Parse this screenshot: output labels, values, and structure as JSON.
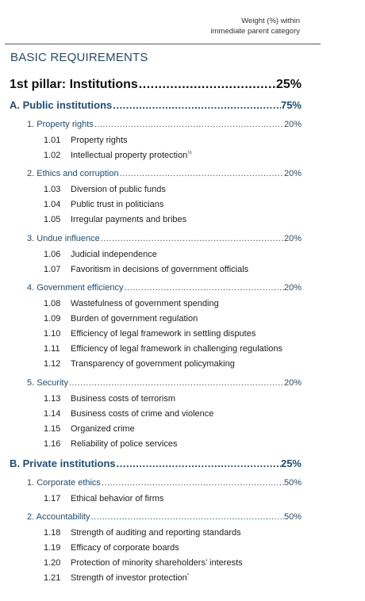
{
  "weight_note": {
    "line1": "Weight (%) within",
    "line2": "immediate parent category"
  },
  "section": {
    "title": "BASIC REQUIREMENTS"
  },
  "pillar": {
    "label": "1st pillar: Institutions",
    "pct": "25%"
  },
  "subsections": [
    {
      "label": "A. Public institutions",
      "pct": "75%"
    },
    {
      "label": "B. Private institutions",
      "pct": "25%"
    }
  ],
  "categories": [
    {
      "label": "1. Property rights",
      "pct": "20%"
    },
    {
      "label": "2. Ethics and corruption",
      "pct": "20%"
    },
    {
      "label": "3. Undue influence",
      "pct": "20%"
    },
    {
      "label": "4. Government efficiency",
      "pct": "20%"
    },
    {
      "label": "5. Security",
      "pct": "20%"
    },
    {
      "label": "1. Corporate ethics",
      "pct": "50%"
    },
    {
      "label": "2. Accountability",
      "pct": "50%"
    }
  ],
  "indicators": [
    {
      "num": "1.01",
      "text": "Property rights"
    },
    {
      "num": "1.02",
      "text": "Intellectual property protection",
      "mark": "½"
    },
    {
      "num": "1.03",
      "text": "Diversion of public funds"
    },
    {
      "num": "1.04",
      "text": "Public trust in politicians"
    },
    {
      "num": "1.05",
      "text": "Irregular payments and bribes"
    },
    {
      "num": "1.06",
      "text": "Judicial independence"
    },
    {
      "num": "1.07",
      "text": "Favoritism in decisions of government officials"
    },
    {
      "num": "1.08",
      "text": "Wastefulness of government spending"
    },
    {
      "num": "1.09",
      "text": "Burden of government regulation"
    },
    {
      "num": "1.10",
      "text": "Efficiency of legal framework in settling disputes"
    },
    {
      "num": "1.11",
      "text": "Efficiency of legal framework in challenging regulations"
    },
    {
      "num": "1.12",
      "text": "Transparency of government policymaking"
    },
    {
      "num": "1.13",
      "text": "Business costs of terrorism"
    },
    {
      "num": "1.14",
      "text": "Business costs of crime and violence"
    },
    {
      "num": "1.15",
      "text": "Organized crime"
    },
    {
      "num": "1.16",
      "text": "Reliability of police services"
    },
    {
      "num": "1.17",
      "text": "Ethical behavior of firms"
    },
    {
      "num": "1.18",
      "text": "Strength of auditing and reporting standards"
    },
    {
      "num": "1.19",
      "text": "Efficacy of corporate boards"
    },
    {
      "num": "1.20",
      "text": "Protection of minority shareholders’ interests"
    },
    {
      "num": "1.21",
      "text": "Strength of investor protection",
      "mark": "*"
    }
  ]
}
